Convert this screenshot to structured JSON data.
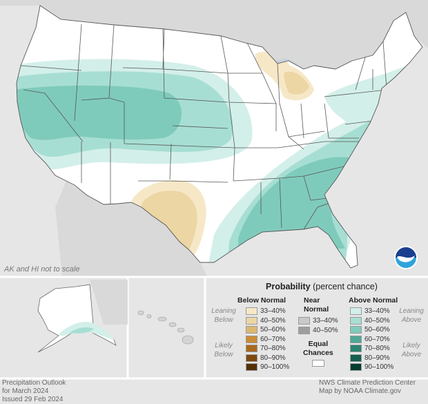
{
  "scale_note": "AK and HI not to scale",
  "legend": {
    "title": "Probability",
    "subtitle": "(percent chance)",
    "below": {
      "header": "Below Normal",
      "leaning": [
        "Leaning",
        "Below"
      ],
      "likely": [
        "Likely",
        "Below"
      ],
      "bins": [
        {
          "label": "33–40%",
          "color": "#f6e8c7"
        },
        {
          "label": "40–50%",
          "color": "#ecd6a4"
        },
        {
          "label": "50–60%",
          "color": "#dcb771"
        },
        {
          "label": "60–70%",
          "color": "#c98c35"
        },
        {
          "label": "70–80%",
          "color": "#a96a1e"
        },
        {
          "label": "80–90%",
          "color": "#7e4a10"
        },
        {
          "label": "90–100%",
          "color": "#553006"
        }
      ]
    },
    "near": {
      "header": [
        "Near",
        "Normal"
      ],
      "bins": [
        {
          "label": "33–40%",
          "color": "#c9c9c9"
        },
        {
          "label": "40–50%",
          "color": "#9e9e9e"
        }
      ]
    },
    "equal": {
      "label": [
        "Equal",
        "Chances"
      ],
      "color": "#ffffff"
    },
    "above": {
      "header": "Above Normal",
      "leaning": [
        "Leaning",
        "Above"
      ],
      "likely": [
        "Likely",
        "Above"
      ],
      "bins": [
        {
          "label": "33–40%",
          "color": "#d3efe9"
        },
        {
          "label": "40–50%",
          "color": "#a7ded3"
        },
        {
          "label": "50–60%",
          "color": "#7fcbbb"
        },
        {
          "label": "60–70%",
          "color": "#4da895"
        },
        {
          "label": "70–80%",
          "color": "#2a8471"
        },
        {
          "label": "80–90%",
          "color": "#145f4f"
        },
        {
          "label": "90–100%",
          "color": "#063d31"
        }
      ]
    }
  },
  "footer": {
    "left": [
      "Precipitation Outlook",
      "for March 2024",
      "Issued 29 Feb 2024"
    ],
    "right": [
      "NWS Climate Prediction Center",
      "Map by NOAA Climate.gov"
    ]
  },
  "logo": {
    "text": "NOAA",
    "colors": {
      "top": "#1a3f8f",
      "bottom": "#2fa3dc",
      "gull": "#ffffff"
    }
  },
  "colors": {
    "background": "#e6e6e6",
    "land": "#ffffff",
    "state_border": "#555555",
    "neighbor_land": "#d9d9d9"
  }
}
